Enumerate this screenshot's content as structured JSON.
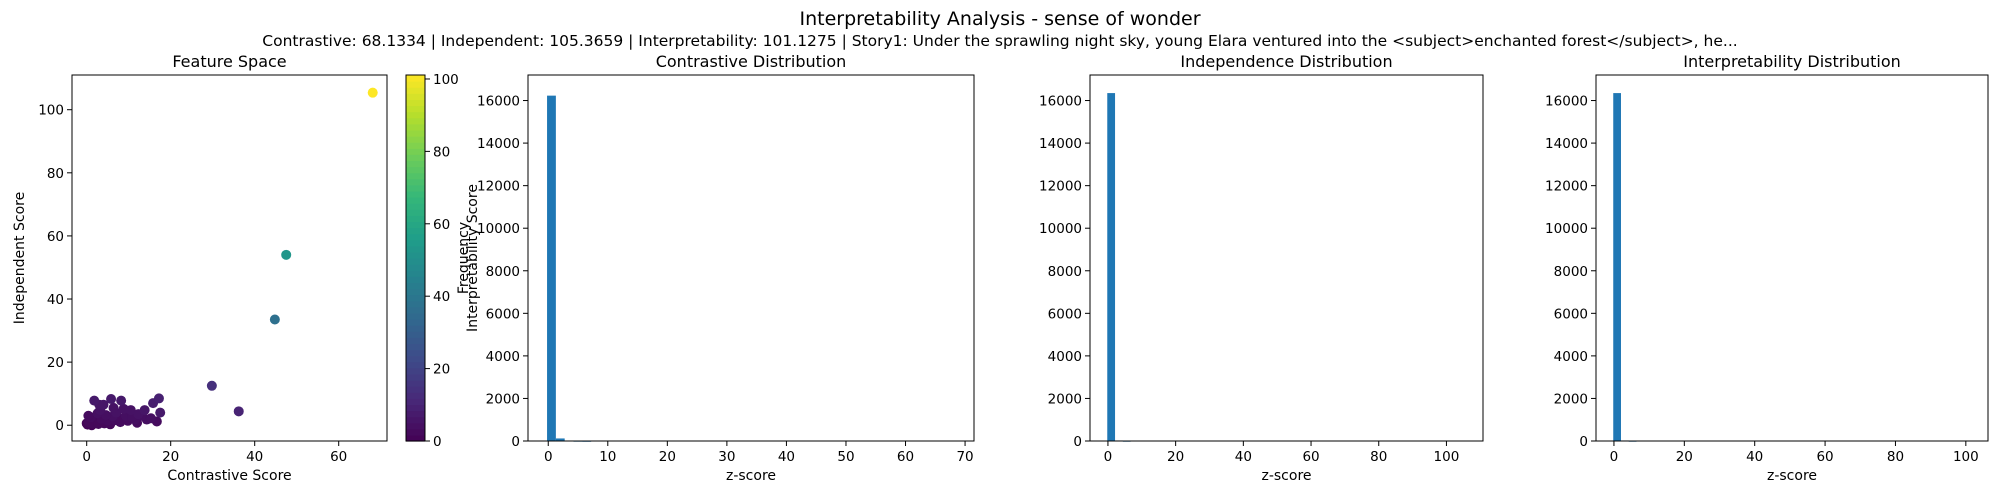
{
  "figure": {
    "suptitle": "Interpretability Analysis - sense of wonder",
    "subtitle": "Contrastive: 68.1334 | Independent: 105.3659 | Interpretability: 101.1275 | Story1: Under the sprawling night sky, young Elara ventured into the <subject>enchanted forest</subject>, he..."
  },
  "colors": {
    "bar": "#1f77b4",
    "axis": "#000000"
  },
  "chart_data": [
    {
      "type": "scatter",
      "title": "Feature Space",
      "xlabel": "Contrastive Score",
      "ylabel": "Independent Score",
      "xlim": [
        -3.5,
        71.5
      ],
      "ylim": [
        -5,
        111
      ],
      "xticks": [
        0,
        20,
        40,
        60
      ],
      "yticks": [
        0,
        20,
        40,
        60,
        80,
        100
      ],
      "colormap": "viridis",
      "colorbar": {
        "label": "Interpretability Score",
        "range": [
          0,
          101.1
        ],
        "ticks": [
          0,
          20,
          40,
          60,
          80,
          100
        ]
      },
      "points": [
        {
          "x": 68.1,
          "y": 105.4,
          "c": 101.1
        },
        {
          "x": 47.5,
          "y": 54.0,
          "c": 53.0
        },
        {
          "x": 44.8,
          "y": 33.5,
          "c": 37.0
        },
        {
          "x": 29.8,
          "y": 12.5,
          "c": 14.0
        },
        {
          "x": 36.2,
          "y": 4.4,
          "c": 10.0
        },
        {
          "x": 17.2,
          "y": 8.5,
          "c": 9.0
        },
        {
          "x": 15.8,
          "y": 7.0,
          "c": 8.0
        },
        {
          "x": 17.5,
          "y": 4.0,
          "c": 7.0
        },
        {
          "x": 5.8,
          "y": 8.3,
          "c": 7.0
        },
        {
          "x": 1.8,
          "y": 7.8,
          "c": 7.0
        },
        {
          "x": 8.2,
          "y": 7.8,
          "c": 7.0
        },
        {
          "x": 3.0,
          "y": 6.5,
          "c": 6.0
        },
        {
          "x": 4.0,
          "y": 6.5,
          "c": 6.0
        },
        {
          "x": 13.8,
          "y": 4.8,
          "c": 6.0
        },
        {
          "x": 10.5,
          "y": 4.8,
          "c": 5.0
        },
        {
          "x": 12.3,
          "y": 3.5,
          "c": 5.0
        },
        {
          "x": 7.0,
          "y": 4.0,
          "c": 5.0
        },
        {
          "x": 9.3,
          "y": 3.0,
          "c": 4.0
        },
        {
          "x": 6.2,
          "y": 2.8,
          "c": 4.0
        },
        {
          "x": 2.6,
          "y": 3.8,
          "c": 4.0
        },
        {
          "x": 4.6,
          "y": 3.2,
          "c": 4.0
        },
        {
          "x": 11.5,
          "y": 1.8,
          "c": 4.0
        },
        {
          "x": 14.3,
          "y": 1.8,
          "c": 4.0
        },
        {
          "x": 15.3,
          "y": 2.2,
          "c": 4.0
        },
        {
          "x": 16.7,
          "y": 1.2,
          "c": 3.0
        },
        {
          "x": 12.0,
          "y": 0.8,
          "c": 3.0
        },
        {
          "x": 8.0,
          "y": 1.0,
          "c": 3.0
        },
        {
          "x": 5.0,
          "y": 1.5,
          "c": 3.0
        },
        {
          "x": 3.5,
          "y": 2.0,
          "c": 3.0
        },
        {
          "x": 1.0,
          "y": 2.5,
          "c": 3.0
        },
        {
          "x": 0.5,
          "y": 1.0,
          "c": 2.0
        },
        {
          "x": 1.5,
          "y": 0.5,
          "c": 2.0
        },
        {
          "x": 2.2,
          "y": 1.2,
          "c": 2.0
        },
        {
          "x": 6.8,
          "y": 1.6,
          "c": 3.0
        },
        {
          "x": 9.8,
          "y": 1.4,
          "c": 3.0
        },
        {
          "x": 0.2,
          "y": 0.2,
          "c": 1.0
        },
        {
          "x": 0.8,
          "y": 0.3,
          "c": 1.0
        },
        {
          "x": 0.0,
          "y": 0.6,
          "c": 1.0
        },
        {
          "x": 1.2,
          "y": 0.0,
          "c": 1.0
        },
        {
          "x": 2.8,
          "y": 0.4,
          "c": 2.0
        },
        {
          "x": 4.2,
          "y": 0.6,
          "c": 2.0
        },
        {
          "x": 5.6,
          "y": 0.3,
          "c": 2.0
        },
        {
          "x": 0.4,
          "y": 3.0,
          "c": 3.0
        },
        {
          "x": 7.6,
          "y": 2.4,
          "c": 3.0
        },
        {
          "x": 10.8,
          "y": 2.6,
          "c": 4.0
        },
        {
          "x": 13.0,
          "y": 3.0,
          "c": 4.0
        },
        {
          "x": 3.2,
          "y": 4.8,
          "c": 5.0
        },
        {
          "x": 6.4,
          "y": 5.5,
          "c": 5.0
        },
        {
          "x": 8.8,
          "y": 5.2,
          "c": 5.0
        }
      ]
    },
    {
      "type": "bar",
      "title": "Contrastive Distribution",
      "xlabel": "z-score",
      "ylabel": "Frequency",
      "xlim": [
        -3.4,
        71.5
      ],
      "ylim": [
        0,
        17200
      ],
      "xticks": [
        0,
        10,
        20,
        30,
        40,
        50,
        60,
        70
      ],
      "yticks": [
        0,
        2000,
        4000,
        6000,
        8000,
        10000,
        12000,
        14000,
        16000
      ],
      "bin_edges": [
        -0.2,
        1.28,
        2.76,
        4.24,
        5.72,
        7.2
      ],
      "values": [
        16230,
        120,
        20,
        6,
        2
      ]
    },
    {
      "type": "bar",
      "title": "Independence Distribution",
      "xlabel": "z-score",
      "ylabel": "",
      "xlim": [
        -5.3,
        110.8
      ],
      "ylim": [
        0,
        17200
      ],
      "xticks": [
        0,
        20,
        40,
        60,
        80,
        100
      ],
      "yticks": [
        0,
        2000,
        4000,
        6000,
        8000,
        10000,
        12000,
        14000,
        16000
      ],
      "bin_edges": [
        -0.2,
        2.1,
        4.4,
        6.7
      ],
      "values": [
        16350,
        25,
        5
      ]
    },
    {
      "type": "bar",
      "title": "Interpretability Distribution",
      "xlabel": "z-score",
      "ylabel": "",
      "xlim": [
        -5.1,
        106.3
      ],
      "ylim": [
        0,
        17200
      ],
      "xticks": [
        0,
        20,
        40,
        60,
        80,
        100
      ],
      "yticks": [
        0,
        2000,
        4000,
        6000,
        8000,
        10000,
        12000,
        14000,
        16000
      ],
      "bin_edges": [
        -0.2,
        2.0,
        4.2,
        6.4
      ],
      "values": [
        16350,
        25,
        5
      ]
    }
  ]
}
